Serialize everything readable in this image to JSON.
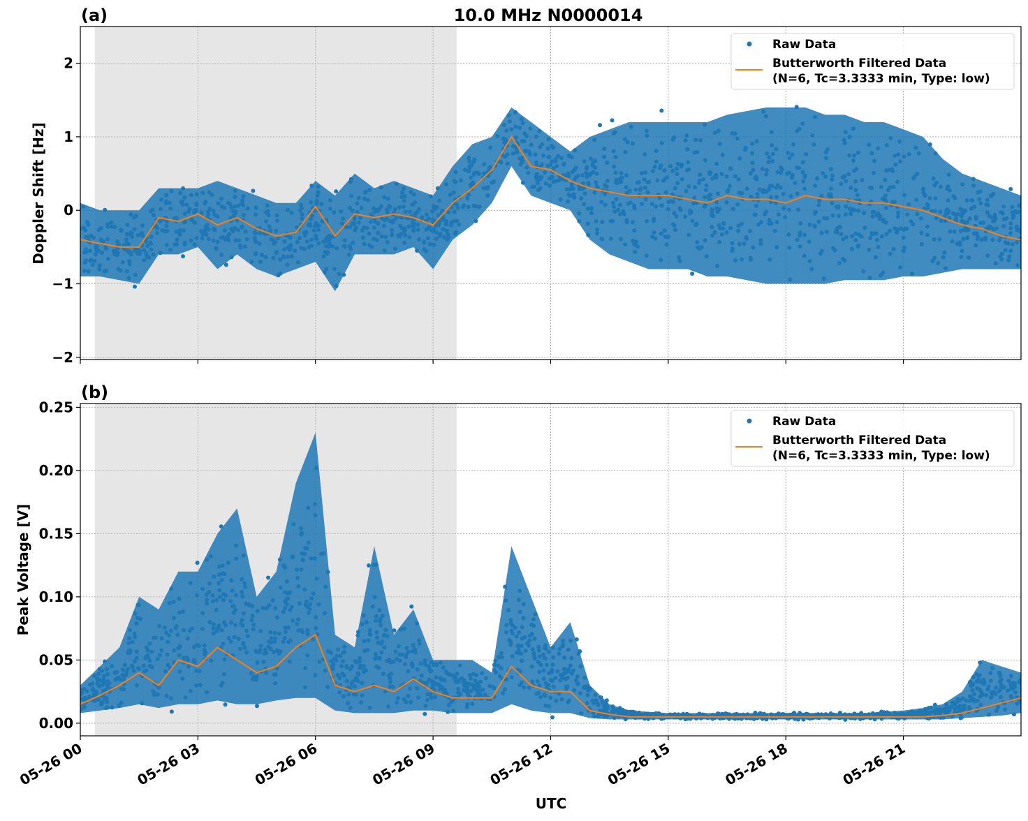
{
  "chart_data": [
    {
      "type": "scatter",
      "panel_label": "(a)",
      "title": "10.0 MHz N0000014",
      "xlabel": "",
      "ylabel": "Doppler Shift [Hz]",
      "xlim_hours": [
        0,
        24
      ],
      "ylim": [
        -2.03,
        2.5
      ],
      "yticks": [
        -2,
        -1,
        0,
        1,
        2
      ],
      "ytick_labels": [
        "−2",
        "−1",
        "0",
        "1",
        "2"
      ],
      "grid": true,
      "legend_placement": "top-right",
      "shaded_span_hours": [
        0.37,
        9.6
      ],
      "x_hours": [
        0,
        0.5,
        1,
        1.5,
        2,
        2.5,
        3,
        3.5,
        4,
        4.5,
        5,
        5.5,
        6,
        6.5,
        7,
        7.5,
        8,
        8.5,
        9,
        9.5,
        10,
        10.5,
        11,
        11.5,
        12,
        12.5,
        13,
        13.5,
        14,
        14.5,
        15,
        15.5,
        16,
        16.5,
        17,
        17.5,
        18,
        18.5,
        19,
        19.5,
        20,
        20.5,
        21,
        21.5,
        22,
        22.5,
        23,
        23.5,
        24
      ],
      "series": [
        {
          "name": "Raw Data",
          "kind": "scatter",
          "color": "#1f77b4",
          "lower": [
            -0.9,
            -0.9,
            -0.95,
            -1.0,
            -0.6,
            -0.6,
            -0.5,
            -0.8,
            -0.6,
            -0.8,
            -0.9,
            -0.8,
            -0.7,
            -1.1,
            -0.6,
            -0.6,
            -0.6,
            -0.5,
            -0.8,
            -0.4,
            -0.2,
            0.1,
            0.6,
            0.2,
            0.1,
            0.0,
            -0.4,
            -0.6,
            -0.7,
            -0.8,
            -0.8,
            -0.8,
            -0.9,
            -0.9,
            -0.95,
            -1.0,
            -1.0,
            -1.0,
            -1.0,
            -0.95,
            -0.95,
            -0.95,
            -0.9,
            -0.9,
            -0.85,
            -0.8,
            -0.8,
            -0.8,
            -0.8
          ],
          "upper": [
            0.1,
            0.0,
            0.0,
            0.0,
            0.3,
            0.3,
            0.3,
            0.4,
            0.3,
            0.2,
            0.1,
            0.1,
            0.4,
            0.2,
            0.5,
            0.3,
            0.4,
            0.3,
            0.2,
            0.6,
            0.9,
            1.0,
            1.4,
            1.2,
            1.0,
            0.8,
            1.0,
            1.1,
            1.2,
            1.2,
            1.2,
            1.2,
            1.2,
            1.3,
            1.35,
            1.4,
            1.4,
            1.4,
            1.3,
            1.3,
            1.2,
            1.2,
            1.1,
            1.0,
            0.7,
            0.5,
            0.4,
            0.3,
            0.2
          ]
        },
        {
          "name": "Butterworth Filtered Data\n(N=6, Tc=3.3333 min, Type: low)",
          "kind": "line",
          "color": "#ff7f0e",
          "values": [
            -0.4,
            -0.45,
            -0.5,
            -0.5,
            -0.1,
            -0.15,
            -0.05,
            -0.2,
            -0.1,
            -0.25,
            -0.35,
            -0.3,
            0.05,
            -0.35,
            -0.05,
            -0.1,
            -0.05,
            -0.1,
            -0.2,
            0.1,
            0.3,
            0.55,
            1.0,
            0.6,
            0.55,
            0.4,
            0.3,
            0.25,
            0.2,
            0.2,
            0.2,
            0.15,
            0.1,
            0.2,
            0.15,
            0.15,
            0.1,
            0.2,
            0.15,
            0.15,
            0.1,
            0.1,
            0.05,
            0.0,
            -0.1,
            -0.2,
            -0.25,
            -0.35,
            -0.4
          ]
        }
      ],
      "legend": [
        "Raw Data",
        "Butterworth Filtered Data",
        "(N=6, Tc=3.3333 min, Type: low)"
      ]
    },
    {
      "type": "scatter",
      "panel_label": "(b)",
      "xlabel": "UTC",
      "ylabel": "Peak Voltage [V]",
      "xlim_hours": [
        0,
        24
      ],
      "ylim": [
        -0.01,
        0.253
      ],
      "yticks": [
        0,
        0.05,
        0.1,
        0.15,
        0.2,
        0.25
      ],
      "ytick_labels": [
        "0.00",
        "0.05",
        "0.10",
        "0.15",
        "0.20",
        "0.25"
      ],
      "xtick_labels": [
        "05-26 00",
        "05-26 03",
        "05-26 06",
        "05-26 09",
        "05-26 12",
        "05-26 15",
        "05-26 18",
        "05-26 21"
      ],
      "xtick_hours": [
        0,
        3,
        6,
        9,
        12,
        15,
        18,
        21
      ],
      "grid": true,
      "legend_placement": "top-right",
      "shaded_span_hours": [
        0.37,
        9.6
      ],
      "x_hours": [
        0,
        0.5,
        1,
        1.5,
        2,
        2.5,
        3,
        3.5,
        4,
        4.5,
        5,
        5.5,
        6,
        6.5,
        7,
        7.5,
        8,
        8.5,
        9,
        9.5,
        10,
        10.5,
        11,
        11.5,
        12,
        12.5,
        13,
        13.5,
        14,
        14.5,
        15,
        15.5,
        16,
        16.5,
        17,
        17.5,
        18,
        18.5,
        19,
        19.5,
        20,
        20.5,
        21,
        21.5,
        22,
        22.5,
        23,
        23.5,
        24
      ],
      "series": [
        {
          "name": "Raw Data",
          "kind": "scatter",
          "color": "#1f77b4",
          "lower": [
            0.008,
            0.01,
            0.012,
            0.015,
            0.012,
            0.015,
            0.015,
            0.018,
            0.015,
            0.015,
            0.018,
            0.02,
            0.02,
            0.01,
            0.008,
            0.008,
            0.008,
            0.01,
            0.01,
            0.008,
            0.008,
            0.008,
            0.015,
            0.01,
            0.008,
            0.008,
            0.004,
            0.003,
            0.003,
            0.003,
            0.003,
            0.003,
            0.003,
            0.003,
            0.003,
            0.003,
            0.003,
            0.003,
            0.003,
            0.003,
            0.003,
            0.003,
            0.003,
            0.003,
            0.003,
            0.004,
            0.005,
            0.006,
            0.008
          ],
          "upper": [
            0.03,
            0.045,
            0.06,
            0.1,
            0.09,
            0.12,
            0.12,
            0.15,
            0.17,
            0.1,
            0.12,
            0.19,
            0.23,
            0.07,
            0.06,
            0.14,
            0.07,
            0.09,
            0.05,
            0.05,
            0.05,
            0.04,
            0.14,
            0.1,
            0.06,
            0.08,
            0.03,
            0.015,
            0.01,
            0.009,
            0.008,
            0.008,
            0.008,
            0.008,
            0.008,
            0.008,
            0.008,
            0.008,
            0.008,
            0.008,
            0.008,
            0.009,
            0.01,
            0.012,
            0.015,
            0.025,
            0.05,
            0.045,
            0.04
          ]
        },
        {
          "name": "Butterworth Filtered Data\n(N=6, Tc=3.3333 min, Type: low)",
          "kind": "line",
          "color": "#ff7f0e",
          "values": [
            0.015,
            0.022,
            0.03,
            0.04,
            0.03,
            0.05,
            0.045,
            0.06,
            0.05,
            0.04,
            0.045,
            0.06,
            0.07,
            0.03,
            0.025,
            0.03,
            0.025,
            0.035,
            0.025,
            0.02,
            0.02,
            0.02,
            0.045,
            0.03,
            0.025,
            0.025,
            0.01,
            0.007,
            0.005,
            0.005,
            0.005,
            0.005,
            0.005,
            0.005,
            0.005,
            0.005,
            0.005,
            0.005,
            0.005,
            0.005,
            0.005,
            0.005,
            0.005,
            0.005,
            0.006,
            0.008,
            0.012,
            0.016,
            0.02
          ]
        }
      ],
      "legend": [
        "Raw Data",
        "Butterworth Filtered Data",
        "(N=6, Tc=3.3333 min, Type: low)"
      ]
    }
  ]
}
